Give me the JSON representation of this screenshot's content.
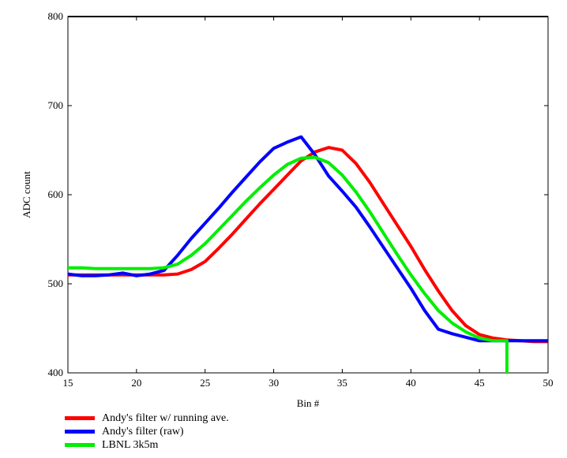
{
  "chart_data": {
    "type": "line",
    "title": "",
    "xlabel": "Bin #",
    "ylabel": "ADC count",
    "xlim": [
      15,
      50
    ],
    "ylim": [
      400,
      800
    ],
    "xticks": [
      15,
      20,
      25,
      30,
      35,
      40,
      45,
      50
    ],
    "yticks": [
      400,
      500,
      600,
      700,
      800
    ],
    "grid": false,
    "legend_position": "bottom-left",
    "series": [
      {
        "name": "Andy's filter w/ running ave.",
        "color": "#ff0000",
        "points": [
          [
            15,
            510
          ],
          [
            16,
            510
          ],
          [
            17,
            510
          ],
          [
            18,
            510
          ],
          [
            19,
            510
          ],
          [
            20,
            510
          ],
          [
            21,
            510
          ],
          [
            22,
            510
          ],
          [
            23,
            511
          ],
          [
            24,
            516
          ],
          [
            25,
            525
          ],
          [
            26,
            540
          ],
          [
            27,
            556
          ],
          [
            28,
            573
          ],
          [
            29,
            590
          ],
          [
            30,
            606
          ],
          [
            31,
            622
          ],
          [
            32,
            638
          ],
          [
            33,
            648
          ],
          [
            34,
            653
          ],
          [
            35,
            650
          ],
          [
            36,
            635
          ],
          [
            37,
            614
          ],
          [
            38,
            590
          ],
          [
            39,
            566
          ],
          [
            40,
            542
          ],
          [
            41,
            516
          ],
          [
            42,
            492
          ],
          [
            43,
            470
          ],
          [
            44,
            453
          ],
          [
            45,
            443
          ],
          [
            46,
            439
          ],
          [
            47,
            437
          ],
          [
            48,
            436
          ],
          [
            49,
            435
          ],
          [
            50,
            435
          ]
        ]
      },
      {
        "name": "Andy's filter (raw)",
        "color": "#0000ff",
        "points": [
          [
            15,
            511
          ],
          [
            16,
            509
          ],
          [
            17,
            509
          ],
          [
            18,
            510
          ],
          [
            19,
            512
          ],
          [
            20,
            509
          ],
          [
            21,
            511
          ],
          [
            22,
            515
          ],
          [
            23,
            532
          ],
          [
            24,
            551
          ],
          [
            25,
            568
          ],
          [
            26,
            585
          ],
          [
            27,
            603
          ],
          [
            28,
            620
          ],
          [
            29,
            637
          ],
          [
            30,
            652
          ],
          [
            31,
            659
          ],
          [
            32,
            665
          ],
          [
            33,
            645
          ],
          [
            34,
            621
          ],
          [
            35,
            604
          ],
          [
            36,
            586
          ],
          [
            37,
            564
          ],
          [
            38,
            541
          ],
          [
            39,
            518
          ],
          [
            40,
            495
          ],
          [
            41,
            470
          ],
          [
            42,
            449
          ],
          [
            43,
            444
          ],
          [
            44,
            440
          ],
          [
            45,
            436
          ],
          [
            46,
            436
          ],
          [
            47,
            436
          ],
          [
            48,
            436
          ],
          [
            49,
            436
          ],
          [
            50,
            436
          ]
        ]
      },
      {
        "name": "LBNL 3k5m",
        "color": "#00ee00",
        "points": [
          [
            15,
            518
          ],
          [
            16,
            518
          ],
          [
            17,
            517
          ],
          [
            18,
            517
          ],
          [
            19,
            517
          ],
          [
            20,
            517
          ],
          [
            21,
            517
          ],
          [
            22,
            518
          ],
          [
            23,
            522
          ],
          [
            24,
            532
          ],
          [
            25,
            545
          ],
          [
            26,
            561
          ],
          [
            27,
            577
          ],
          [
            28,
            593
          ],
          [
            29,
            608
          ],
          [
            30,
            622
          ],
          [
            31,
            634
          ],
          [
            32,
            641
          ],
          [
            33,
            642
          ],
          [
            34,
            636
          ],
          [
            35,
            622
          ],
          [
            36,
            603
          ],
          [
            37,
            581
          ],
          [
            38,
            557
          ],
          [
            39,
            533
          ],
          [
            40,
            510
          ],
          [
            41,
            489
          ],
          [
            42,
            470
          ],
          [
            43,
            456
          ],
          [
            44,
            446
          ],
          [
            45,
            439
          ],
          [
            46,
            436
          ],
          [
            47,
            436
          ],
          [
            47,
            400
          ]
        ]
      }
    ]
  }
}
